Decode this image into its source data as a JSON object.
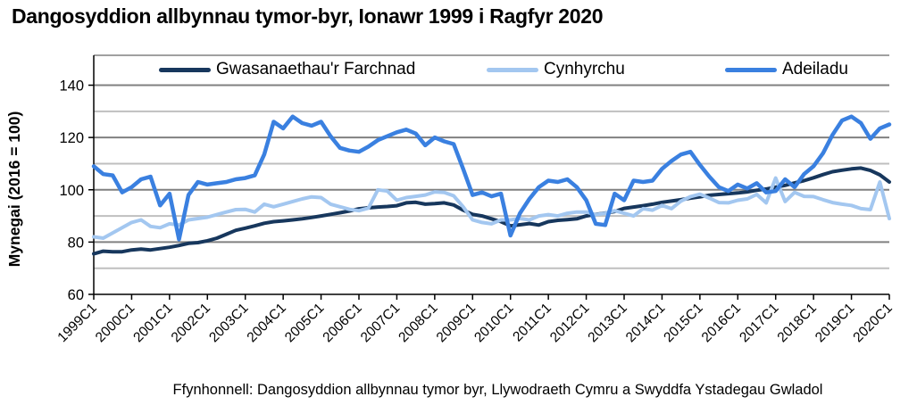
{
  "title": "Dangosyddion allbynnau tymor-byr, Ionawr 1999 i Ragfyr 2020",
  "footer": "Ffynhonnell: Dangosyddion allbynnau tymor byr, Llywodraeth Cymru a Swyddfa Ystadegau Gwladol",
  "colors": {
    "market_services": "#17375D",
    "production": "#A3C7F0",
    "construction": "#3A80E0",
    "grid_major": "#808080",
    "grid_minor": "#BFBFBF",
    "axis": "#000000"
  },
  "chart_data": {
    "type": "line",
    "title": "Dangosyddion allbynnau tymor-byr, Ionawr 1999 i Ragfyr 2020",
    "xlabel": "",
    "ylabel": "Mynegai (2016 = 100)",
    "ylim": [
      60,
      145
    ],
    "yticks": [
      60,
      80,
      100,
      120,
      140
    ],
    "gridlines_major": [
      80,
      100,
      120,
      140
    ],
    "gridlines_minor": [
      70,
      90,
      110,
      130
    ],
    "legend_position": "top",
    "x_start": "1999C1",
    "x_end": "2020C1",
    "x_frequency": "quarterly",
    "x_tick_labels": [
      "1999C1",
      "2000C1",
      "2001C1",
      "2002C1",
      "2003C1",
      "2004C1",
      "2005C1",
      "2006C1",
      "2007C1",
      "2008C1",
      "2009C1",
      "2010C1",
      "2011C1",
      "2012C1",
      "2013C1",
      "2014C1",
      "2015C1",
      "2016C1",
      "2017C1",
      "2018C1",
      "2019C1",
      "2020C1"
    ],
    "series": [
      {
        "name": "Gwasanaethau'r Farchnad",
        "color": "#17375D",
        "values": [
          75.5,
          76.5,
          76.3,
          76.3,
          77,
          77.3,
          77,
          77.5,
          78,
          78.7,
          79.5,
          79.8,
          80.5,
          81.5,
          83,
          84.5,
          85.3,
          86.2,
          87.2,
          87.8,
          88.1,
          88.5,
          88.9,
          89.4,
          90,
          90.6,
          91.2,
          91.9,
          92.7,
          93.1,
          93.4,
          93.6,
          93.9,
          95,
          95.2,
          94.5,
          94.7,
          95,
          94.2,
          92.2,
          90.6,
          90,
          88.9,
          87.8,
          86.2,
          86.6,
          87.1,
          86.5,
          87.8,
          88.3,
          88.6,
          88.9,
          90,
          90.6,
          91.1,
          91.7,
          92.9,
          93.4,
          93.9,
          94.5,
          95.2,
          95.7,
          96.2,
          96.8,
          97.3,
          97.9,
          98.2,
          98.5,
          98.8,
          99.2,
          99.8,
          100.3,
          101,
          101.7,
          102.6,
          103.5,
          104.6,
          105.8,
          106.9,
          107.5,
          108,
          108.3,
          107.4,
          105.7,
          103
        ]
      },
      {
        "name": "Cynhyrchu",
        "color": "#A3C7F0",
        "values": [
          82,
          81.5,
          83.5,
          85.5,
          87.5,
          88.5,
          86,
          85.5,
          87,
          86.5,
          88.5,
          89,
          89.5,
          90.5,
          91.5,
          92.4,
          92.5,
          91.5,
          94.5,
          93.5,
          94.5,
          95.5,
          96.5,
          97.3,
          97,
          94.5,
          93.5,
          92.5,
          92,
          93,
          100,
          99.5,
          96,
          97,
          97.5,
          98,
          99.2,
          99,
          97.7,
          93.5,
          88.5,
          87.5,
          87,
          88.5,
          88.5,
          89,
          88.5,
          90,
          90.5,
          90,
          91,
          91.5,
          91.5,
          90.5,
          91,
          92,
          91,
          90,
          92.8,
          92.2,
          94,
          92.8,
          95.7,
          97.4,
          98.3,
          96.8,
          95.1,
          95,
          96,
          96.5,
          98.2,
          95,
          104.5,
          95.5,
          99,
          97.5,
          97.4,
          96.2,
          95.1,
          94.5,
          94,
          92.8,
          92.4,
          103,
          89
        ]
      },
      {
        "name": "Adeiladu",
        "color": "#3A80E0",
        "values": [
          109,
          106,
          105.5,
          99,
          101,
          104,
          105,
          94,
          98.5,
          81,
          98,
          103,
          102,
          102.5,
          103,
          104,
          104.5,
          105.5,
          113.5,
          126,
          123.5,
          128,
          125.5,
          124.5,
          126,
          120.5,
          116,
          115,
          114.5,
          116.5,
          119,
          120.5,
          122,
          123,
          121.5,
          117,
          120,
          118.5,
          117.5,
          108,
          98,
          99,
          97.5,
          98.5,
          82.5,
          91,
          96.5,
          101,
          103.5,
          103,
          104,
          101,
          96,
          87,
          86.5,
          98.5,
          96,
          103.5,
          103,
          103.5,
          108,
          111,
          113.5,
          114.5,
          109.5,
          105,
          101,
          99.5,
          102,
          100.5,
          102.5,
          99,
          99.5,
          104,
          101,
          106,
          109,
          114,
          121,
          126.5,
          128,
          125.5,
          119.5,
          123.5,
          125
        ]
      }
    ]
  }
}
